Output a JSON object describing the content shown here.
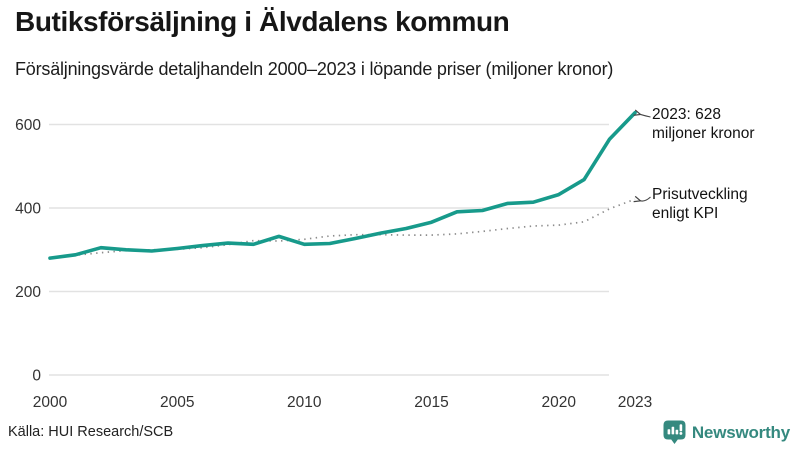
{
  "header": {
    "title": "Butiksförsäljning i Älvdalens kommun",
    "subtitle": "Försäljningsvärde detaljhandeln 2000–2023 i löpande priser (miljoner kronor)"
  },
  "chart_data": {
    "type": "line",
    "title": "Butiksförsäljning i Älvdalens kommun",
    "subtitle": "Försäljningsvärde detaljhandeln 2000–2023 i löpande priser (miljoner kronor)",
    "x": [
      2000,
      2001,
      2002,
      2003,
      2004,
      2005,
      2006,
      2007,
      2008,
      2009,
      2010,
      2011,
      2012,
      2013,
      2014,
      2015,
      2016,
      2017,
      2018,
      2019,
      2020,
      2021,
      2022,
      2023
    ],
    "series": [
      {
        "name": "Försäljningsvärde detaljhandeln (löpande priser)",
        "style": "solid",
        "color": "#179a8b",
        "values": [
          280,
          288,
          305,
          300,
          297,
          303,
          310,
          316,
          313,
          332,
          313,
          315,
          327,
          340,
          351,
          366,
          391,
          394,
          411,
          414,
          432,
          468,
          565,
          628
        ]
      },
      {
        "name": "Prisutveckling enligt KPI",
        "style": "dotted",
        "color": "#8c8c8c",
        "values": [
          280,
          287,
          293,
          298,
          300,
          301,
          305,
          312,
          322,
          321,
          325,
          333,
          336,
          336,
          335,
          335,
          338,
          344,
          351,
          357,
          359,
          367,
          398,
          421
        ]
      }
    ],
    "xlabel": "",
    "ylabel": "",
    "ylim": [
      0,
      660
    ],
    "yticks": [
      0,
      200,
      400,
      600
    ],
    "xticks": [
      2000,
      2005,
      2010,
      2015,
      2020,
      2023
    ],
    "grid": "horizontal",
    "legend_position": "none",
    "annotations": [
      {
        "lines": [
          "2023: 628",
          "miljoner kronor"
        ],
        "series": 0
      },
      {
        "lines": [
          "Prisutveckling",
          "enligt KPI"
        ],
        "series": 1
      }
    ]
  },
  "footer": {
    "source": "Källa: HUI Research/SCB",
    "brand": "Newsworthy"
  },
  "colors": {
    "sales_line": "#179a8b",
    "kpi_line": "#8c8c8c",
    "grid": "#e2e2e2",
    "tick_text": "#333333",
    "annotation_arrow": "#444444",
    "brand_teal": "#35897f",
    "title_text": "#161616"
  }
}
